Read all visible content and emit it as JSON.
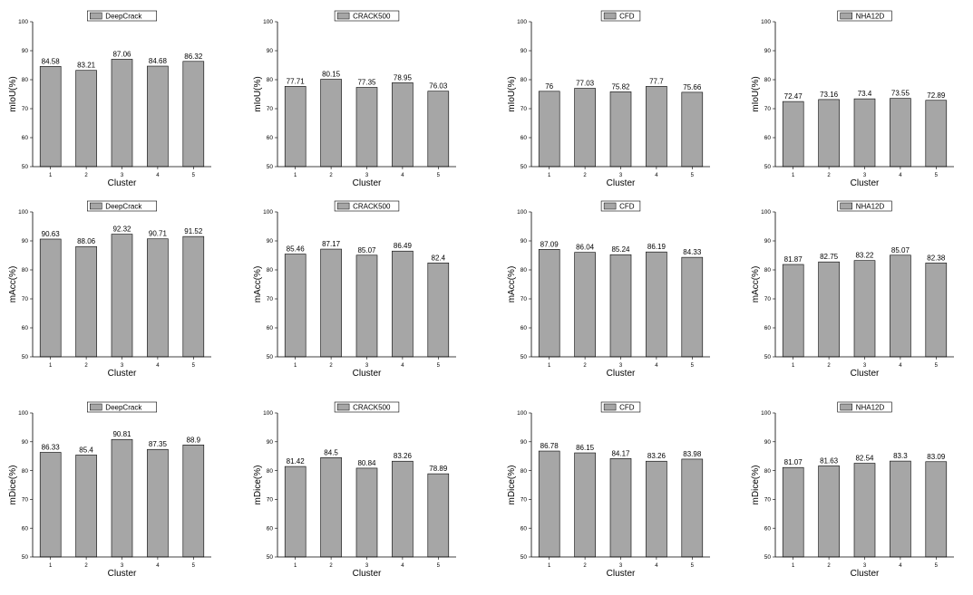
{
  "style": {
    "bar_fill": "#a6a6a6",
    "bar_stroke": "#000000",
    "axis_color": "#000000",
    "legend_swatch": "#a6a6a6"
  },
  "chart_data": [
    {
      "type": "bar",
      "legend": "DeepCrack",
      "xlabel": "Cluster",
      "ylabel": "mIoU(%)",
      "categories": [
        "1",
        "2",
        "3",
        "4",
        "5"
      ],
      "values": [
        84.58,
        83.21,
        87.06,
        84.68,
        86.32
      ],
      "data_labels": [
        "84.58",
        "83.21",
        "87.06",
        "84.68",
        "86.32"
      ],
      "ylim": [
        50,
        100
      ],
      "yticks": [
        "50",
        "60",
        "70",
        "80",
        "90",
        "100"
      ]
    },
    {
      "type": "bar",
      "legend": "CRACK500",
      "xlabel": "Cluster",
      "ylabel": "mIoU(%)",
      "categories": [
        "1",
        "2",
        "3",
        "4",
        "5"
      ],
      "values": [
        77.71,
        80.15,
        77.35,
        78.95,
        76.03
      ],
      "data_labels": [
        "77.71",
        "80.15",
        "77.35",
        "78.95",
        "76.03"
      ],
      "ylim": [
        50,
        100
      ],
      "yticks": [
        "50",
        "60",
        "70",
        "80",
        "90",
        "100"
      ]
    },
    {
      "type": "bar",
      "legend": "CFD",
      "xlabel": "Cluster",
      "ylabel": "mIoU(%)",
      "categories": [
        "1",
        "2",
        "3",
        "4",
        "5"
      ],
      "values": [
        76,
        77.03,
        75.82,
        77.7,
        75.66
      ],
      "data_labels": [
        "76",
        "77.03",
        "75.82",
        "77.7",
        "75.66"
      ],
      "ylim": [
        50,
        100
      ],
      "yticks": [
        "50",
        "60",
        "70",
        "80",
        "90",
        "100"
      ]
    },
    {
      "type": "bar",
      "legend": "NHA12D",
      "xlabel": "Cluster",
      "ylabel": "mIoU(%)",
      "categories": [
        "1",
        "2",
        "3",
        "4",
        "5"
      ],
      "values": [
        72.47,
        73.16,
        73.4,
        73.55,
        72.89
      ],
      "data_labels": [
        "72.47",
        "73.16",
        "73.4",
        "73.55",
        "72.89"
      ],
      "ylim": [
        50,
        100
      ],
      "yticks": [
        "50",
        "60",
        "70",
        "80",
        "90",
        "100"
      ]
    },
    {
      "type": "bar",
      "legend": "DeepCrack",
      "xlabel": "Cluster",
      "ylabel": "mAcc(%)",
      "categories": [
        "1",
        "2",
        "3",
        "4",
        "5"
      ],
      "values": [
        90.63,
        88.06,
        92.32,
        90.71,
        91.52
      ],
      "data_labels": [
        "90.63",
        "88.06",
        "92.32",
        "90.71",
        "91.52"
      ],
      "ylim": [
        50,
        100
      ],
      "yticks": [
        "50",
        "60",
        "70",
        "80",
        "90",
        "100"
      ]
    },
    {
      "type": "bar",
      "legend": "CRACK500",
      "xlabel": "Cluster",
      "ylabel": "mAcc(%)",
      "categories": [
        "1",
        "2",
        "3",
        "4",
        "5"
      ],
      "values": [
        85.46,
        87.17,
        85.07,
        86.49,
        82.4
      ],
      "data_labels": [
        "85.46",
        "87.17",
        "85.07",
        "86.49",
        "82.4"
      ],
      "ylim": [
        50,
        100
      ],
      "yticks": [
        "50",
        "60",
        "70",
        "80",
        "90",
        "100"
      ]
    },
    {
      "type": "bar",
      "legend": "CFD",
      "xlabel": "Cluster",
      "ylabel": "mAcc(%)",
      "categories": [
        "1",
        "2",
        "3",
        "4",
        "5"
      ],
      "values": [
        87.09,
        86.04,
        85.24,
        86.19,
        84.33
      ],
      "data_labels": [
        "87.09",
        "86.04",
        "85.24",
        "86.19",
        "84.33"
      ],
      "ylim": [
        50,
        100
      ],
      "yticks": [
        "50",
        "60",
        "70",
        "80",
        "90",
        "100"
      ]
    },
    {
      "type": "bar",
      "legend": "NHA12D",
      "xlabel": "Cluster",
      "ylabel": "mAcc(%)",
      "categories": [
        "1",
        "2",
        "3",
        "4",
        "5"
      ],
      "values": [
        81.87,
        82.75,
        83.22,
        85.07,
        82.38
      ],
      "data_labels": [
        "81.87",
        "82.75",
        "83.22",
        "85.07",
        "82.38"
      ],
      "ylim": [
        50,
        100
      ],
      "yticks": [
        "50",
        "60",
        "70",
        "80",
        "90",
        "100"
      ]
    },
    {
      "type": "bar",
      "legend": "DeepCrack",
      "xlabel": "Cluster",
      "ylabel": "mDice(%)",
      "categories": [
        "1",
        "2",
        "3",
        "4",
        "5"
      ],
      "values": [
        86.33,
        85.4,
        90.81,
        87.35,
        88.9
      ],
      "data_labels": [
        "86.33",
        "85.4",
        "90.81",
        "87.35",
        "88.9"
      ],
      "ylim": [
        50,
        100
      ],
      "yticks": [
        "50",
        "60",
        "70",
        "80",
        "90",
        "100"
      ]
    },
    {
      "type": "bar",
      "legend": "CRACK500",
      "xlabel": "Cluster",
      "ylabel": "mDice(%)",
      "categories": [
        "1",
        "2",
        "3",
        "4",
        "5"
      ],
      "values": [
        81.42,
        84.5,
        80.84,
        83.26,
        78.89
      ],
      "data_labels": [
        "81.42",
        "84.5",
        "80.84",
        "83.26",
        "78.89"
      ],
      "ylim": [
        50,
        100
      ],
      "yticks": [
        "50",
        "60",
        "70",
        "80",
        "90",
        "100"
      ]
    },
    {
      "type": "bar",
      "legend": "CFD",
      "xlabel": "Cluster",
      "ylabel": "mDice(%)",
      "categories": [
        "1",
        "2",
        "3",
        "4",
        "5"
      ],
      "values": [
        86.78,
        86.15,
        84.17,
        83.26,
        83.98
      ],
      "data_labels": [
        "86.78",
        "86.15",
        "84.17",
        "83.26",
        "83.98"
      ],
      "ylim": [
        50,
        100
      ],
      "yticks": [
        "50",
        "60",
        "70",
        "80",
        "90",
        "100"
      ]
    },
    {
      "type": "bar",
      "legend": "NHA12D",
      "xlabel": "Cluster",
      "ylabel": "mDice(%)",
      "categories": [
        "1",
        "2",
        "3",
        "4",
        "5"
      ],
      "values": [
        81.07,
        81.63,
        82.54,
        83.3,
        83.09
      ],
      "data_labels": [
        "81.07",
        "81.63",
        "82.54",
        "83.3",
        "83.09"
      ],
      "ylim": [
        50,
        100
      ],
      "yticks": [
        "50",
        "60",
        "70",
        "80",
        "90",
        "100"
      ]
    }
  ]
}
